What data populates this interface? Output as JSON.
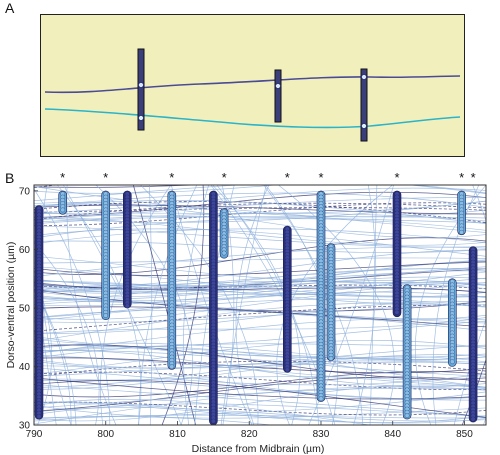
{
  "figure": {
    "panel_a": {
      "label": "A"
    },
    "panel_b": {
      "label": "B"
    }
  },
  "colors": {
    "panel_a_bg": "#f1f0bc",
    "bar_fill": "#3a3f7a",
    "trace_upper": "#4a4a96",
    "trace_lower": "#2bb3c8",
    "track_light": "#8fb0db",
    "track_dark": "#2b2f6e",
    "column_light": "#63a7d9",
    "column_dark": "#2a2f7a"
  },
  "chart_data": {
    "type": "scatter",
    "xlabel": "Distance from Midbrain (µm)",
    "ylabel": "Dorso-ventral position (µm)",
    "xlim": [
      790,
      853
    ],
    "ylim": [
      30,
      71
    ],
    "xticks": [
      790,
      800,
      810,
      820,
      830,
      840,
      850
    ],
    "yticks": [
      30,
      40,
      50,
      60,
      70
    ],
    "columns": [
      {
        "x": 790.7,
        "y0": 31,
        "y1": 67.5,
        "style": "dark",
        "star": false
      },
      {
        "x": 794.0,
        "y0": 66,
        "y1": 70,
        "style": "light",
        "star": true
      },
      {
        "x": 800.0,
        "y0": 48,
        "y1": 70,
        "style": "light",
        "star": true
      },
      {
        "x": 803.0,
        "y0": 50,
        "y1": 70,
        "style": "dark",
        "star": false
      },
      {
        "x": 809.2,
        "y0": 39.5,
        "y1": 70,
        "style": "light",
        "star": true
      },
      {
        "x": 815.0,
        "y0": 30,
        "y1": 70,
        "style": "dark",
        "star": false
      },
      {
        "x": 816.5,
        "y0": 58.5,
        "y1": 67,
        "style": "light",
        "star": true
      },
      {
        "x": 825.3,
        "y0": 39,
        "y1": 64,
        "style": "dark",
        "star": true
      },
      {
        "x": 830.0,
        "y0": 34,
        "y1": 70,
        "style": "light",
        "star": true
      },
      {
        "x": 831.4,
        "y0": 41,
        "y1": 61,
        "style": "light",
        "star": false
      },
      {
        "x": 840.6,
        "y0": 48.5,
        "y1": 70,
        "style": "dark",
        "star": true
      },
      {
        "x": 842.0,
        "y0": 31,
        "y1": 54,
        "style": "light",
        "star": false
      },
      {
        "x": 848.3,
        "y0": 40,
        "y1": 55,
        "style": "light",
        "star": false
      },
      {
        "x": 849.6,
        "y0": 62.5,
        "y1": 70,
        "style": "light",
        "star": true
      },
      {
        "x": 851.2,
        "y0": 30.5,
        "y1": 60.5,
        "style": "dark",
        "star": true
      }
    ]
  }
}
